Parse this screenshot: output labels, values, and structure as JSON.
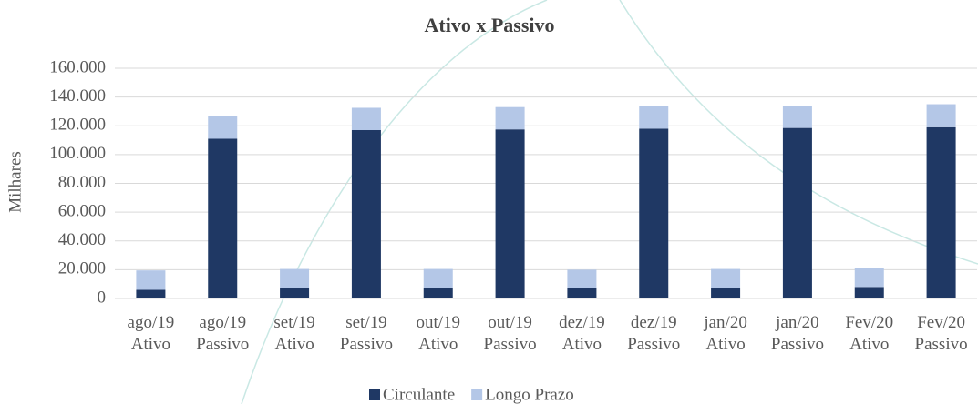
{
  "chart_data": {
    "type": "bar",
    "stacked": true,
    "title": "Ativo x Passivo",
    "y_label": "Milhares",
    "categories": [
      "ago/19 Ativo",
      "ago/19 Passivo",
      "set/19 Ativo",
      "set/19 Passivo",
      "out/19 Ativo",
      "out/19 Passivo",
      "dez/19 Ativo",
      "dez/19 Passivo",
      "jan/20 Ativo",
      "jan/20 Passivo",
      "Fev/20 Ativo",
      "Fev/20 Passivo"
    ],
    "series": [
      {
        "name": "Circulante",
        "color": "#1f3864",
        "values": [
          6000,
          111000,
          7000,
          117000,
          7500,
          117500,
          7000,
          118000,
          7500,
          118500,
          8000,
          119000
        ]
      },
      {
        "name": "Longo Prazo",
        "color": "#b4c7e7",
        "values": [
          13500,
          15500,
          13500,
          15500,
          13000,
          15500,
          13000,
          15500,
          13000,
          15500,
          13000,
          16000
        ]
      }
    ],
    "ylim": [
      0,
      160000
    ],
    "yticks": [
      0,
      {
        "value": 20000,
        "label": "20.000"
      },
      {
        "value": 40000,
        "label": "40.000"
      },
      {
        "value": 60000,
        "label": "60.000"
      },
      {
        "value": 80000,
        "label": "80.000"
      },
      {
        "value": 100000,
        "label": "100.000"
      },
      {
        "value": 120000,
        "label": "120.000"
      },
      {
        "value": 140000,
        "label": "140.000"
      },
      {
        "value": 160000,
        "label": "160.000"
      }
    ],
    "legend": "bottom"
  }
}
